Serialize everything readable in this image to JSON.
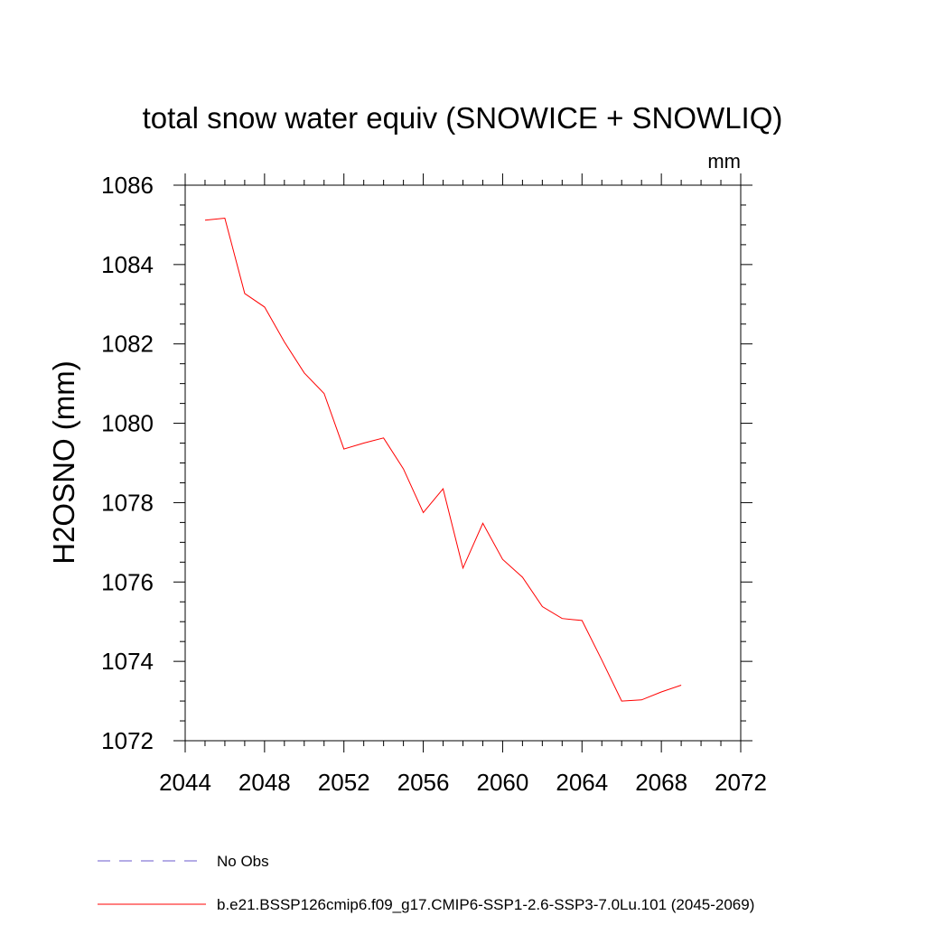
{
  "chart_data": {
    "type": "line",
    "title": "total snow water equiv (SNOWICE + SNOWLIQ)",
    "units": "mm",
    "ylabel": "H2OSNO  (mm)",
    "xlabel": "",
    "xlim": [
      2044,
      2072
    ],
    "ylim": [
      1072,
      1086
    ],
    "x_ticks": [
      2044,
      2048,
      2052,
      2056,
      2060,
      2064,
      2068,
      2072
    ],
    "y_ticks": [
      1072,
      1074,
      1076,
      1078,
      1080,
      1082,
      1084,
      1086
    ],
    "grid": false,
    "legend_position": "bottom",
    "series": [
      {
        "name": "No Obs",
        "color": "#6a5acd",
        "dash": "dashed",
        "x": [],
        "y": []
      },
      {
        "name": "b.e21.BSSP126cmip6.f09_g17.CMIP6-SSP1-2.6-SSP3-7.0Lu.101 (2045-2069)",
        "color": "#ff0000",
        "dash": "solid",
        "x": [
          2045,
          2046,
          2047,
          2048,
          2049,
          2050,
          2051,
          2052,
          2053,
          2054,
          2055,
          2056,
          2057,
          2058,
          2059,
          2060,
          2061,
          2062,
          2063,
          2064,
          2065,
          2066,
          2067,
          2068,
          2069
        ],
        "y": [
          1085.12,
          1085.17,
          1083.27,
          1082.93,
          1082.05,
          1081.27,
          1080.75,
          1079.35,
          1079.5,
          1079.63,
          1078.85,
          1077.75,
          1078.35,
          1076.35,
          1077.48,
          1076.57,
          1076.12,
          1075.38,
          1075.08,
          1075.03,
          1074.03,
          1073.0,
          1073.03,
          1073.23,
          1073.4
        ]
      }
    ]
  }
}
